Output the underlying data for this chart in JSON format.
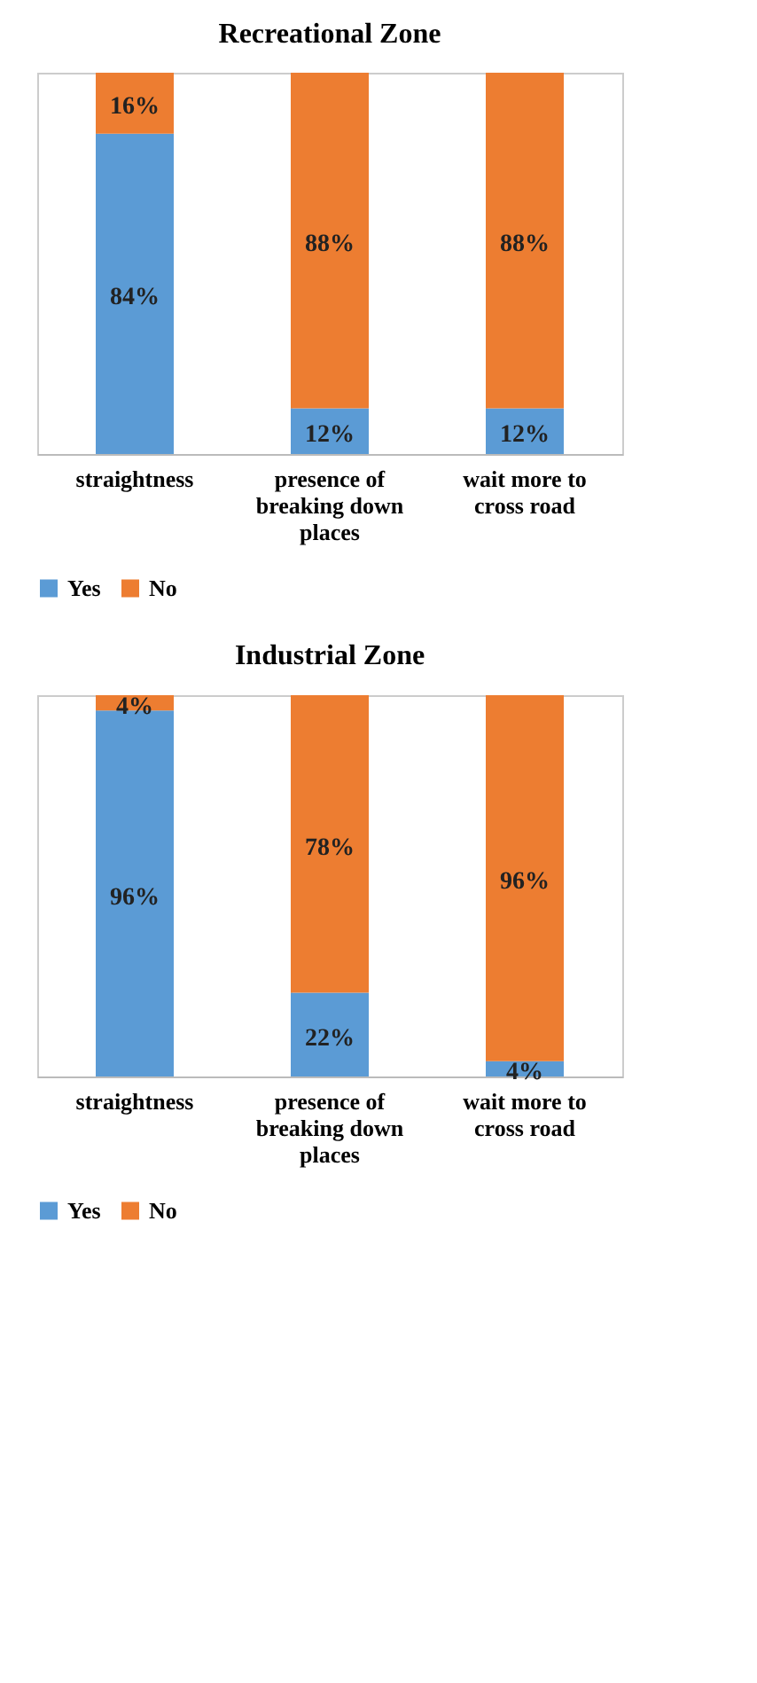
{
  "chart_data": [
    {
      "type": "bar",
      "title": "Recreational Zone",
      "categories": [
        "straightness",
        "presence of breaking down places",
        "wait more to cross road"
      ],
      "stacked": true,
      "legend": "bottom",
      "grid": "x",
      "series": [
        {
          "name": "Yes",
          "color": "#5b9bd5",
          "values": [
            84,
            12,
            12
          ],
          "value_labels": [
            "84%",
            "12%",
            "12%"
          ]
        },
        {
          "name": "No",
          "color": "#ed7d31",
          "values": [
            16,
            88,
            88
          ],
          "value_labels": [
            "16%",
            "88%",
            "88%"
          ]
        }
      ]
    },
    {
      "type": "bar",
      "title": "Industrial Zone",
      "categories": [
        "straightness",
        "presence of breaking down places",
        "wait more to cross road"
      ],
      "stacked": true,
      "legend": "bottom",
      "grid": "x",
      "series": [
        {
          "name": "Yes",
          "color": "#5b9bd5",
          "values": [
            96,
            22,
            4
          ],
          "value_labels": [
            "96%",
            "22%",
            "4%"
          ]
        },
        {
          "name": "No",
          "color": "#ed7d31",
          "values": [
            4,
            78,
            96
          ],
          "value_labels": [
            "4%",
            "78%",
            "96%"
          ]
        }
      ]
    }
  ]
}
